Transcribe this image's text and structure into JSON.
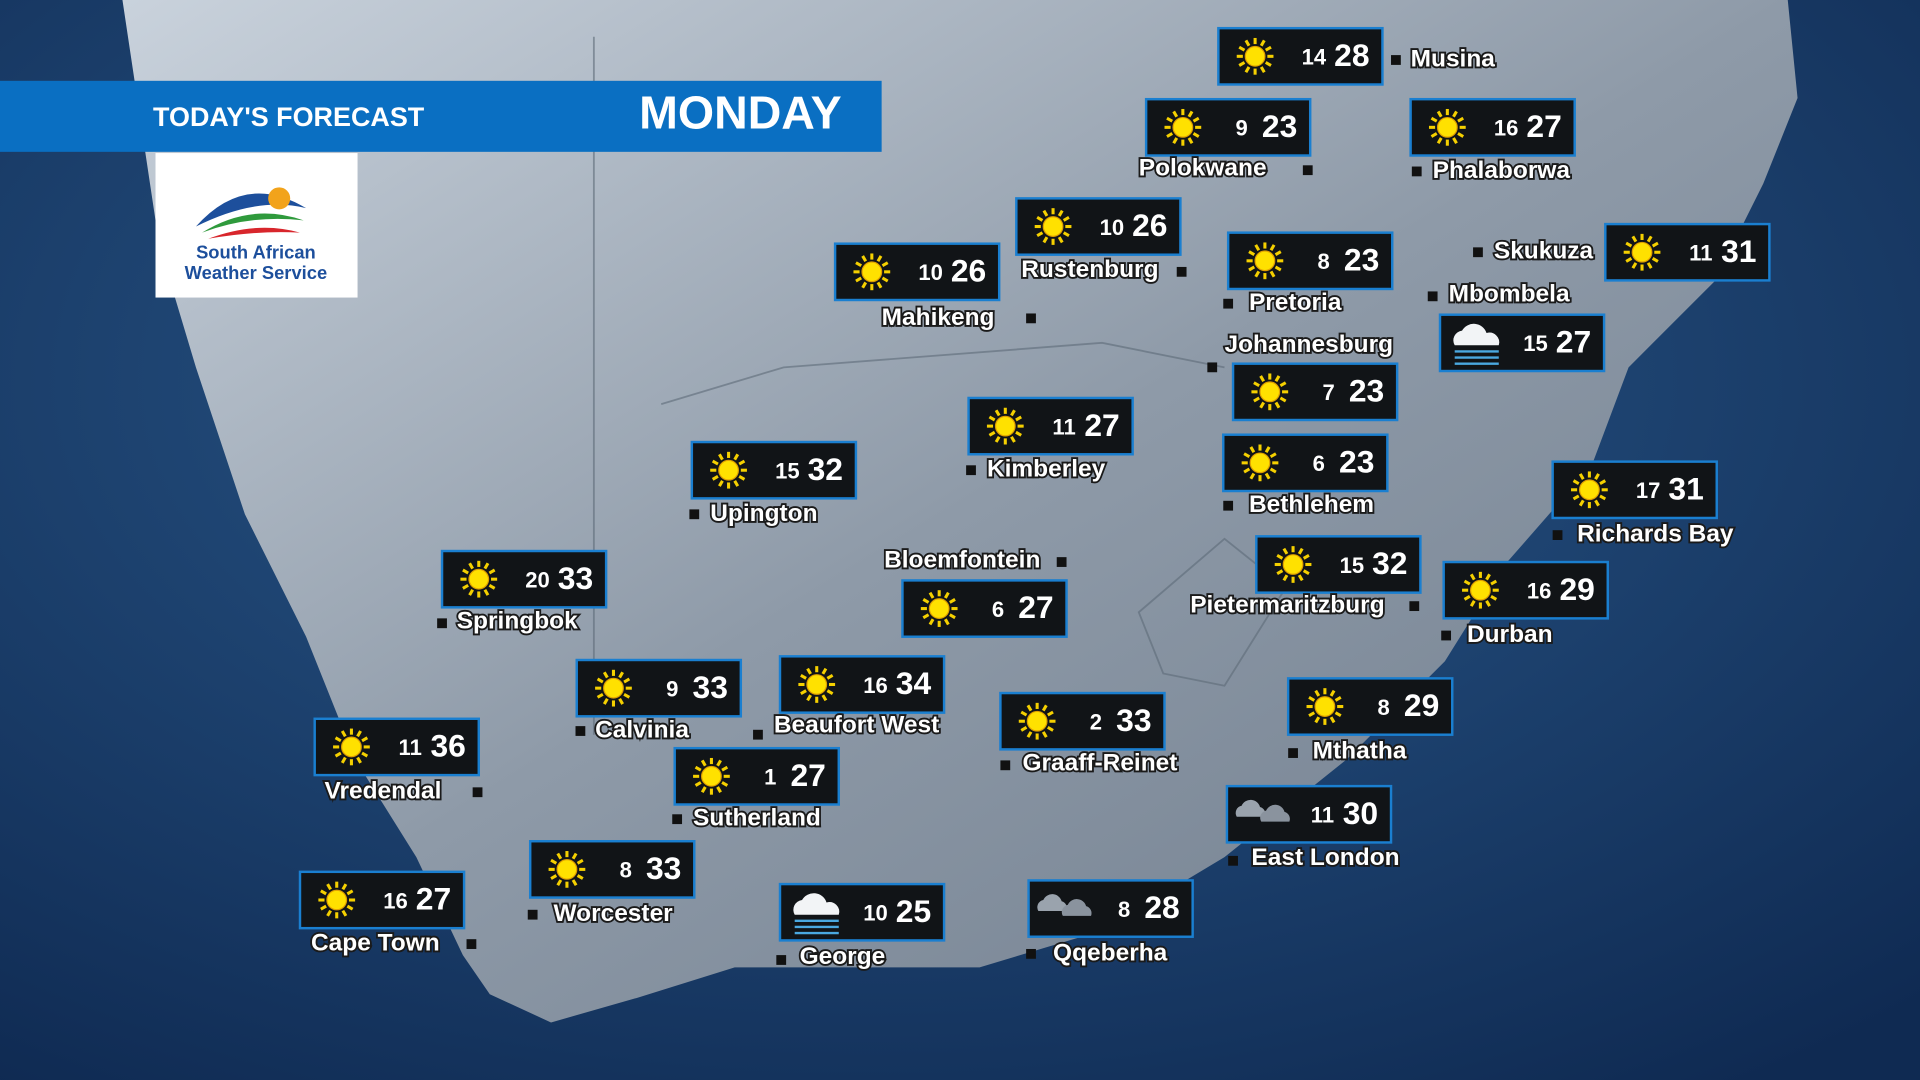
{
  "header": {
    "title": "TODAY'S FORECAST",
    "day": "MONDAY"
  },
  "logo": {
    "line1": "South African",
    "line2": "Weather Service"
  },
  "cities": [
    {
      "name": "Musina",
      "min": 14,
      "max": 28,
      "icon": "sun"
    },
    {
      "name": "Polokwane",
      "min": 9,
      "max": 23,
      "icon": "sun"
    },
    {
      "name": "Phalaborwa",
      "min": 16,
      "max": 27,
      "icon": "sun"
    },
    {
      "name": "Rustenburg",
      "min": 10,
      "max": 26,
      "icon": "sun"
    },
    {
      "name": "Mahikeng",
      "min": 10,
      "max": 26,
      "icon": "sun"
    },
    {
      "name": "Pretoria",
      "min": 8,
      "max": 23,
      "icon": "sun"
    },
    {
      "name": "Skukuza",
      "min": 11,
      "max": 31,
      "icon": "sun"
    },
    {
      "name": "Mbombela",
      "min": 15,
      "max": 27,
      "icon": "fog"
    },
    {
      "name": "Johannesburg",
      "min": 7,
      "max": 23,
      "icon": "sun"
    },
    {
      "name": "Kimberley",
      "min": 11,
      "max": 27,
      "icon": "sun"
    },
    {
      "name": "Bethlehem",
      "min": 6,
      "max": 23,
      "icon": "sun"
    },
    {
      "name": "Upington",
      "min": 15,
      "max": 32,
      "icon": "sun"
    },
    {
      "name": "Richards Bay",
      "min": 17,
      "max": 31,
      "icon": "sun"
    },
    {
      "name": "Bloemfontein",
      "min": 6,
      "max": 27,
      "icon": "sun"
    },
    {
      "name": "Pietermaritzburg",
      "min": 15,
      "max": 32,
      "icon": "sun"
    },
    {
      "name": "Springbok",
      "min": 20,
      "max": 33,
      "icon": "sun"
    },
    {
      "name": "Durban",
      "min": 16,
      "max": 29,
      "icon": "sun"
    },
    {
      "name": "Calvinia",
      "min": 9,
      "max": 33,
      "icon": "sun"
    },
    {
      "name": "Beaufort West",
      "min": 16,
      "max": 34,
      "icon": "sun"
    },
    {
      "name": "Vredendal",
      "min": 11,
      "max": 36,
      "icon": "sun"
    },
    {
      "name": "Graaff-Reinet",
      "min": 2,
      "max": 33,
      "icon": "sun"
    },
    {
      "name": "Mthatha",
      "min": 8,
      "max": 29,
      "icon": "sun"
    },
    {
      "name": "Sutherland",
      "min": 1,
      "max": 27,
      "icon": "sun"
    },
    {
      "name": "East London",
      "min": 11,
      "max": 30,
      "icon": "cloud"
    },
    {
      "name": "Worcester",
      "min": 8,
      "max": 33,
      "icon": "sun"
    },
    {
      "name": "Cape Town",
      "min": 16,
      "max": 27,
      "icon": "sun"
    },
    {
      "name": "George",
      "min": 10,
      "max": 25,
      "icon": "fog"
    },
    {
      "name": "Qqeberha",
      "min": 8,
      "max": 28,
      "icon": "cloud"
    }
  ]
}
